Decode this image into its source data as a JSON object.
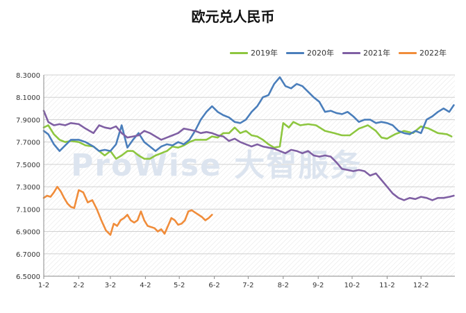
{
  "chart_data": {
    "type": "line",
    "title": "欧元兑人民币",
    "xlabel": "",
    "ylabel": "",
    "ylim": [
      6.5,
      8.3
    ],
    "yticks": [
      "8.3000",
      "8.1000",
      "7.9000",
      "7.7000",
      "7.5000",
      "7.3000",
      "7.1000",
      "6.9000",
      "6.7000",
      "6.5000"
    ],
    "xticks": [
      "1-2",
      "2-2",
      "3-2",
      "4-2",
      "5-2",
      "6-2",
      "7-2",
      "8-2",
      "9-2",
      "10-2",
      "11-2",
      "12-2"
    ],
    "grid": true,
    "legend_position": "top-right",
    "watermark": "ProWise 大智服务",
    "series": [
      {
        "name": "2019年",
        "color": "#8dc63f",
        "x": [
          1,
          5,
          10,
          15,
          20,
          25,
          32,
          38,
          45,
          50,
          55,
          60,
          65,
          70,
          75,
          80,
          85,
          90,
          95,
          100,
          105,
          110,
          115,
          120,
          125,
          130,
          135,
          140,
          145,
          150,
          155,
          160,
          165,
          170,
          175,
          180,
          185,
          190,
          195,
          200,
          205,
          210,
          213,
          218,
          222,
          228,
          235,
          242,
          250,
          258,
          265,
          272,
          280,
          288,
          295,
          300,
          305,
          312,
          320,
          328,
          335,
          342,
          350,
          358,
          362
        ],
        "values": [
          7.83,
          7.85,
          7.77,
          7.72,
          7.7,
          7.71,
          7.7,
          7.67,
          7.66,
          7.62,
          7.58,
          7.62,
          7.55,
          7.58,
          7.62,
          7.62,
          7.58,
          7.55,
          7.55,
          7.58,
          7.6,
          7.62,
          7.66,
          7.65,
          7.67,
          7.7,
          7.72,
          7.72,
          7.72,
          7.75,
          7.74,
          7.78,
          7.78,
          7.83,
          7.78,
          7.8,
          7.76,
          7.75,
          7.72,
          7.68,
          7.65,
          7.66,
          7.87,
          7.83,
          7.88,
          7.85,
          7.86,
          7.85,
          7.8,
          7.78,
          7.76,
          7.76,
          7.82,
          7.85,
          7.8,
          7.74,
          7.73,
          7.77,
          7.8,
          7.78,
          7.84,
          7.82,
          7.78,
          7.77,
          7.75
        ]
      },
      {
        "name": "2020年",
        "color": "#4a7ebb",
        "x": [
          1,
          5,
          10,
          15,
          20,
          25,
          32,
          38,
          45,
          50,
          55,
          60,
          65,
          70,
          75,
          80,
          85,
          90,
          95,
          100,
          105,
          110,
          115,
          120,
          125,
          130,
          135,
          140,
          145,
          150,
          155,
          160,
          165,
          170,
          175,
          180,
          185,
          190,
          195,
          200,
          205,
          210,
          215,
          220,
          225,
          230,
          235,
          240,
          245,
          250,
          255,
          260,
          265,
          270,
          275,
          280,
          285,
          290,
          295,
          300,
          305,
          310,
          315,
          320,
          325,
          330,
          335,
          340,
          345,
          350,
          355,
          360,
          364
        ],
        "values": [
          7.8,
          7.77,
          7.68,
          7.62,
          7.67,
          7.72,
          7.72,
          7.7,
          7.66,
          7.62,
          7.63,
          7.62,
          7.68,
          7.85,
          7.65,
          7.72,
          7.78,
          7.7,
          7.66,
          7.62,
          7.66,
          7.68,
          7.67,
          7.7,
          7.68,
          7.72,
          7.8,
          7.9,
          7.97,
          8.02,
          7.97,
          7.94,
          7.92,
          7.88,
          7.87,
          7.9,
          7.97,
          8.02,
          8.1,
          8.12,
          8.22,
          8.28,
          8.2,
          8.18,
          8.22,
          8.2,
          8.15,
          8.1,
          8.06,
          7.97,
          7.98,
          7.96,
          7.95,
          7.97,
          7.93,
          7.88,
          7.9,
          7.9,
          7.87,
          7.88,
          7.87,
          7.85,
          7.8,
          7.78,
          7.77,
          7.8,
          7.78,
          7.9,
          7.93,
          7.97,
          8.0,
          7.97,
          8.03
        ]
      },
      {
        "name": "2021年",
        "color": "#7f5fa3",
        "x": [
          1,
          5,
          10,
          15,
          20,
          25,
          32,
          38,
          45,
          50,
          55,
          60,
          65,
          70,
          75,
          80,
          85,
          90,
          95,
          100,
          105,
          110,
          115,
          120,
          125,
          130,
          135,
          140,
          145,
          150,
          155,
          160,
          165,
          170,
          175,
          180,
          185,
          190,
          195,
          200,
          205,
          210,
          215,
          220,
          225,
          230,
          235,
          240,
          245,
          250,
          255,
          260,
          265,
          270,
          275,
          280,
          285,
          290,
          295,
          300,
          305,
          310,
          315,
          320,
          325,
          330,
          335,
          340,
          345,
          350,
          355,
          360,
          364
        ],
        "values": [
          7.98,
          7.88,
          7.85,
          7.86,
          7.85,
          7.87,
          7.86,
          7.82,
          7.78,
          7.85,
          7.83,
          7.82,
          7.84,
          7.78,
          7.74,
          7.75,
          7.76,
          7.8,
          7.78,
          7.75,
          7.72,
          7.74,
          7.76,
          7.78,
          7.82,
          7.81,
          7.8,
          7.78,
          7.79,
          7.78,
          7.76,
          7.75,
          7.71,
          7.73,
          7.7,
          7.68,
          7.66,
          7.68,
          7.66,
          7.65,
          7.64,
          7.62,
          7.6,
          7.63,
          7.62,
          7.6,
          7.62,
          7.58,
          7.57,
          7.58,
          7.57,
          7.52,
          7.46,
          7.45,
          7.44,
          7.45,
          7.44,
          7.4,
          7.42,
          7.36,
          7.3,
          7.24,
          7.2,
          7.18,
          7.2,
          7.19,
          7.21,
          7.2,
          7.18,
          7.2,
          7.2,
          7.21,
          7.22
        ]
      },
      {
        "name": "2022年",
        "color": "#f08c3a",
        "x": [
          1,
          4,
          7,
          10,
          13,
          16,
          19,
          22,
          25,
          28,
          32,
          36,
          40,
          44,
          48,
          52,
          56,
          60,
          63,
          66,
          69,
          72,
          75,
          78,
          81,
          84,
          87,
          90,
          93,
          96,
          99,
          102,
          105,
          108,
          111,
          114,
          117,
          120,
          123,
          126,
          129,
          132,
          135,
          138,
          141,
          144,
          147,
          150
        ],
        "values": [
          7.2,
          7.22,
          7.21,
          7.25,
          7.3,
          7.26,
          7.2,
          7.15,
          7.12,
          7.11,
          7.27,
          7.25,
          7.16,
          7.18,
          7.1,
          7.0,
          6.91,
          6.87,
          6.97,
          6.95,
          7.0,
          7.02,
          7.05,
          7.0,
          6.98,
          7.0,
          7.08,
          7.0,
          6.95,
          6.94,
          6.93,
          6.9,
          6.92,
          6.88,
          6.95,
          7.02,
          7.0,
          6.96,
          6.97,
          7.0,
          7.08,
          7.09,
          7.07,
          7.05,
          7.03,
          7.0,
          7.02,
          7.05
        ]
      }
    ]
  }
}
